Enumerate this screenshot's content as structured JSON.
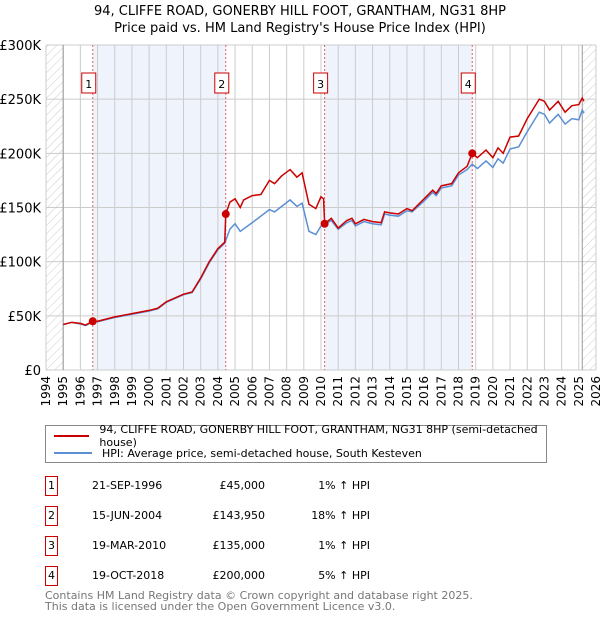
{
  "title": "94, CLIFFE ROAD, GONERBY HILL FOOT, GRANTHAM, NG31 8HP",
  "subtitle": "Price paid vs. HM Land Registry's House Price Index (HPI)",
  "chart_data": {
    "type": "line",
    "title": "94, CLIFFE ROAD, GONERBY HILL FOOT, GRANTHAM, NG31 8HP",
    "subtitle": "Price paid vs. HM Land Registry's House Price Index (HPI)",
    "xlim": [
      1994,
      2026
    ],
    "ylim": [
      0,
      300000
    ],
    "yticks": [
      0,
      50000,
      100000,
      150000,
      200000,
      250000,
      300000
    ],
    "ytick_labels": [
      "£0",
      "£50K",
      "£100K",
      "£150K",
      "£200K",
      "£250K",
      "£300K"
    ],
    "xticks": [
      "1994",
      "1995",
      "1996",
      "1997",
      "1998",
      "1999",
      "2000",
      "2001",
      "2002",
      "2003",
      "2004",
      "2005",
      "2006",
      "2007",
      "2008",
      "2009",
      "2010",
      "2011",
      "2012",
      "2013",
      "2014",
      "2015",
      "2016",
      "2017",
      "2018",
      "2019",
      "2020",
      "2021",
      "2022",
      "2023",
      "2024",
      "2025",
      "2026"
    ],
    "grid": true,
    "colors": {
      "property": "#cc0000",
      "hpi": "#5b8fd4",
      "band": "#eef3fc"
    },
    "series": [
      {
        "name": "94, CLIFFE ROAD, GONERBY HILL FOOT, GRANTHAM, NG31 8HP (semi-detached house)",
        "x": [
          1995,
          1995.5,
          1996,
          1996.3,
          1996.72,
          1997,
          1998,
          1999,
          2000,
          2000.5,
          2001,
          2002,
          2002.5,
          2003,
          2003.5,
          2004,
          2004.4,
          2004.46,
          2004.7,
          2005,
          2005.3,
          2005.5,
          2006,
          2006.5,
          2007,
          2007.3,
          2007.7,
          2008.2,
          2008.6,
          2008.9,
          2009.3,
          2009.7,
          2010,
          2010.15,
          2010.21,
          2010.6,
          2011,
          2011.5,
          2011.8,
          2012,
          2012.5,
          2013,
          2013.5,
          2013.7,
          2014,
          2014.5,
          2015,
          2015.3,
          2016,
          2016.5,
          2016.7,
          2017,
          2017.6,
          2018,
          2018.5,
          2018.8,
          2019.1,
          2019.6,
          2020,
          2020.3,
          2020.6,
          2021,
          2021.5,
          2022,
          2022.7,
          2023,
          2023.3,
          2023.8,
          2024.2,
          2024.6,
          2025,
          2025.2,
          2025.3
        ],
        "values": [
          42000,
          44000,
          43000,
          41500,
          45000,
          45000,
          49000,
          52000,
          55000,
          57000,
          63000,
          70000,
          72000,
          85000,
          100000,
          112000,
          118000,
          143950,
          155000,
          158000,
          150000,
          157000,
          161000,
          162000,
          175000,
          172000,
          179000,
          185000,
          178000,
          182000,
          153000,
          149000,
          160000,
          158000,
          135000,
          140000,
          131000,
          138000,
          140000,
          135000,
          139000,
          137000,
          136000,
          146000,
          145000,
          144000,
          149000,
          147000,
          158000,
          166000,
          163000,
          170000,
          172000,
          182000,
          188000,
          200000,
          196000,
          203000,
          196000,
          205000,
          200000,
          215000,
          216000,
          232000,
          250000,
          248000,
          240000,
          248000,
          238000,
          244000,
          245000,
          251000,
          248000
        ]
      },
      {
        "name": "HPI: Average price, semi-detached house, South Kesteven",
        "x": [
          1995,
          1995.5,
          1996,
          1996.3,
          1996.72,
          1997,
          1998,
          1999,
          2000,
          2000.5,
          2001,
          2002,
          2002.5,
          2003,
          2003.5,
          2004,
          2004.4,
          2004.7,
          2005,
          2005.3,
          2006,
          2007,
          2007.3,
          2008.2,
          2008.6,
          2008.9,
          2009.3,
          2009.7,
          2010,
          2010.6,
          2011,
          2011.5,
          2011.8,
          2012,
          2012.5,
          2013,
          2013.5,
          2013.7,
          2014,
          2014.5,
          2015,
          2015.3,
          2016,
          2016.5,
          2016.7,
          2017,
          2017.6,
          2018,
          2018.5,
          2018.8,
          2019.1,
          2019.6,
          2020,
          2020.3,
          2020.6,
          2021,
          2021.5,
          2022,
          2022.7,
          2023,
          2023.3,
          2023.8,
          2024.2,
          2024.6,
          2025,
          2025.2,
          2025.3
        ],
        "values": [
          42000,
          44000,
          42500,
          41000,
          44500,
          44500,
          48500,
          51500,
          54500,
          56500,
          62500,
          69500,
          71500,
          84000,
          99000,
          111000,
          117000,
          130000,
          135000,
          128000,
          136000,
          148000,
          146000,
          157000,
          151000,
          154000,
          128000,
          125000,
          133000,
          138000,
          130000,
          136000,
          138000,
          133000,
          137000,
          135000,
          134000,
          144000,
          143000,
          142000,
          147000,
          146000,
          156000,
          164000,
          161000,
          168000,
          170000,
          180000,
          185000,
          190000,
          186000,
          193000,
          187000,
          195000,
          191000,
          204000,
          206000,
          220000,
          238000,
          236000,
          228000,
          236000,
          227000,
          232000,
          231000,
          240000,
          237000
        ]
      }
    ],
    "sales": [
      {
        "label": "1",
        "x": 1996.72,
        "value": 45000,
        "date": "21-SEP-1996",
        "price": "£45,000",
        "hpi": "1% ↑ HPI"
      },
      {
        "label": "2",
        "x": 2004.46,
        "value": 143950,
        "date": "15-JUN-2004",
        "price": "£143,950",
        "hpi": "18% ↑ HPI"
      },
      {
        "label": "3",
        "x": 2010.21,
        "value": 135000,
        "date": "19-MAR-2010",
        "price": "£135,000",
        "hpi": "1% ↑ HPI"
      },
      {
        "label": "4",
        "x": 2018.8,
        "value": 200000,
        "date": "19-OCT-2018",
        "price": "£200,000",
        "hpi": "5% ↑ HPI"
      }
    ],
    "hatched_before": 1995,
    "hatched_after": 2025.2,
    "legend": "below"
  },
  "footer": {
    "line1": "Contains HM Land Registry data © Crown copyright and database right 2025.",
    "line2": "This data is licensed under the Open Government Licence v3.0."
  }
}
